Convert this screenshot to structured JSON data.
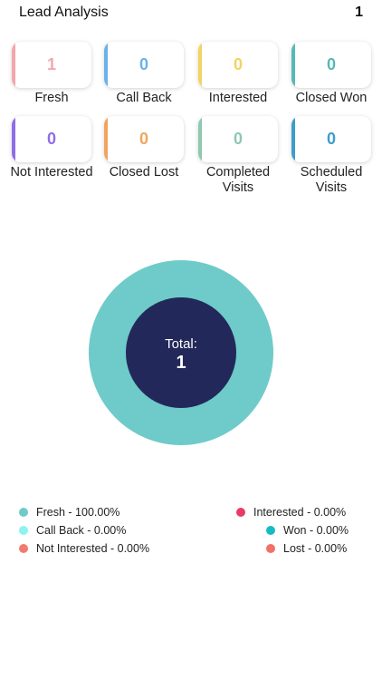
{
  "header": {
    "title": "Lead Analysis",
    "count": "1"
  },
  "cards": [
    {
      "label": "Fresh",
      "value": "1",
      "color": "#f4a6ad"
    },
    {
      "label": "Call Back",
      "value": "0",
      "color": "#6cb1e8"
    },
    {
      "label": "Interested",
      "value": "0",
      "color": "#f4d35e"
    },
    {
      "label": "Closed Won",
      "value": "0",
      "color": "#56b9b6"
    },
    {
      "label": "Not Interested",
      "value": "0",
      "color": "#8e6ee6"
    },
    {
      "label": "Closed Lost",
      "value": "0",
      "color": "#f2a45c"
    },
    {
      "label": "Completed Visits",
      "value": "0",
      "color": "#8ec8b0"
    },
    {
      "label": "Scheduled Visits",
      "value": "0",
      "color": "#3d9dc9"
    }
  ],
  "chart": {
    "center_label": "Total:",
    "center_value": "1",
    "outer_color": "#6ecbc9",
    "inner_color": "#23285a"
  },
  "chart_data": {
    "type": "pie",
    "categories": [
      "Fresh",
      "Call Back",
      "Not Interested",
      "Interested",
      "Won",
      "Lost"
    ],
    "values": [
      1,
      0,
      0,
      0,
      0,
      0
    ],
    "total": 1
  },
  "legend": [
    {
      "text": "Fresh - 100.00%",
      "color": "#6ecbc9"
    },
    {
      "text": "Call Back - 0.00%",
      "color": "#8ef3f0"
    },
    {
      "text": "Not Interested - 0.00%",
      "color": "#f27b6e"
    },
    {
      "text": "Interested - 0.00%",
      "color": "#ea3a66"
    },
    {
      "text": "Won - 0.00%",
      "color": "#16bcc5"
    },
    {
      "text": "Lost - 0.00%",
      "color": "#f17168"
    }
  ]
}
